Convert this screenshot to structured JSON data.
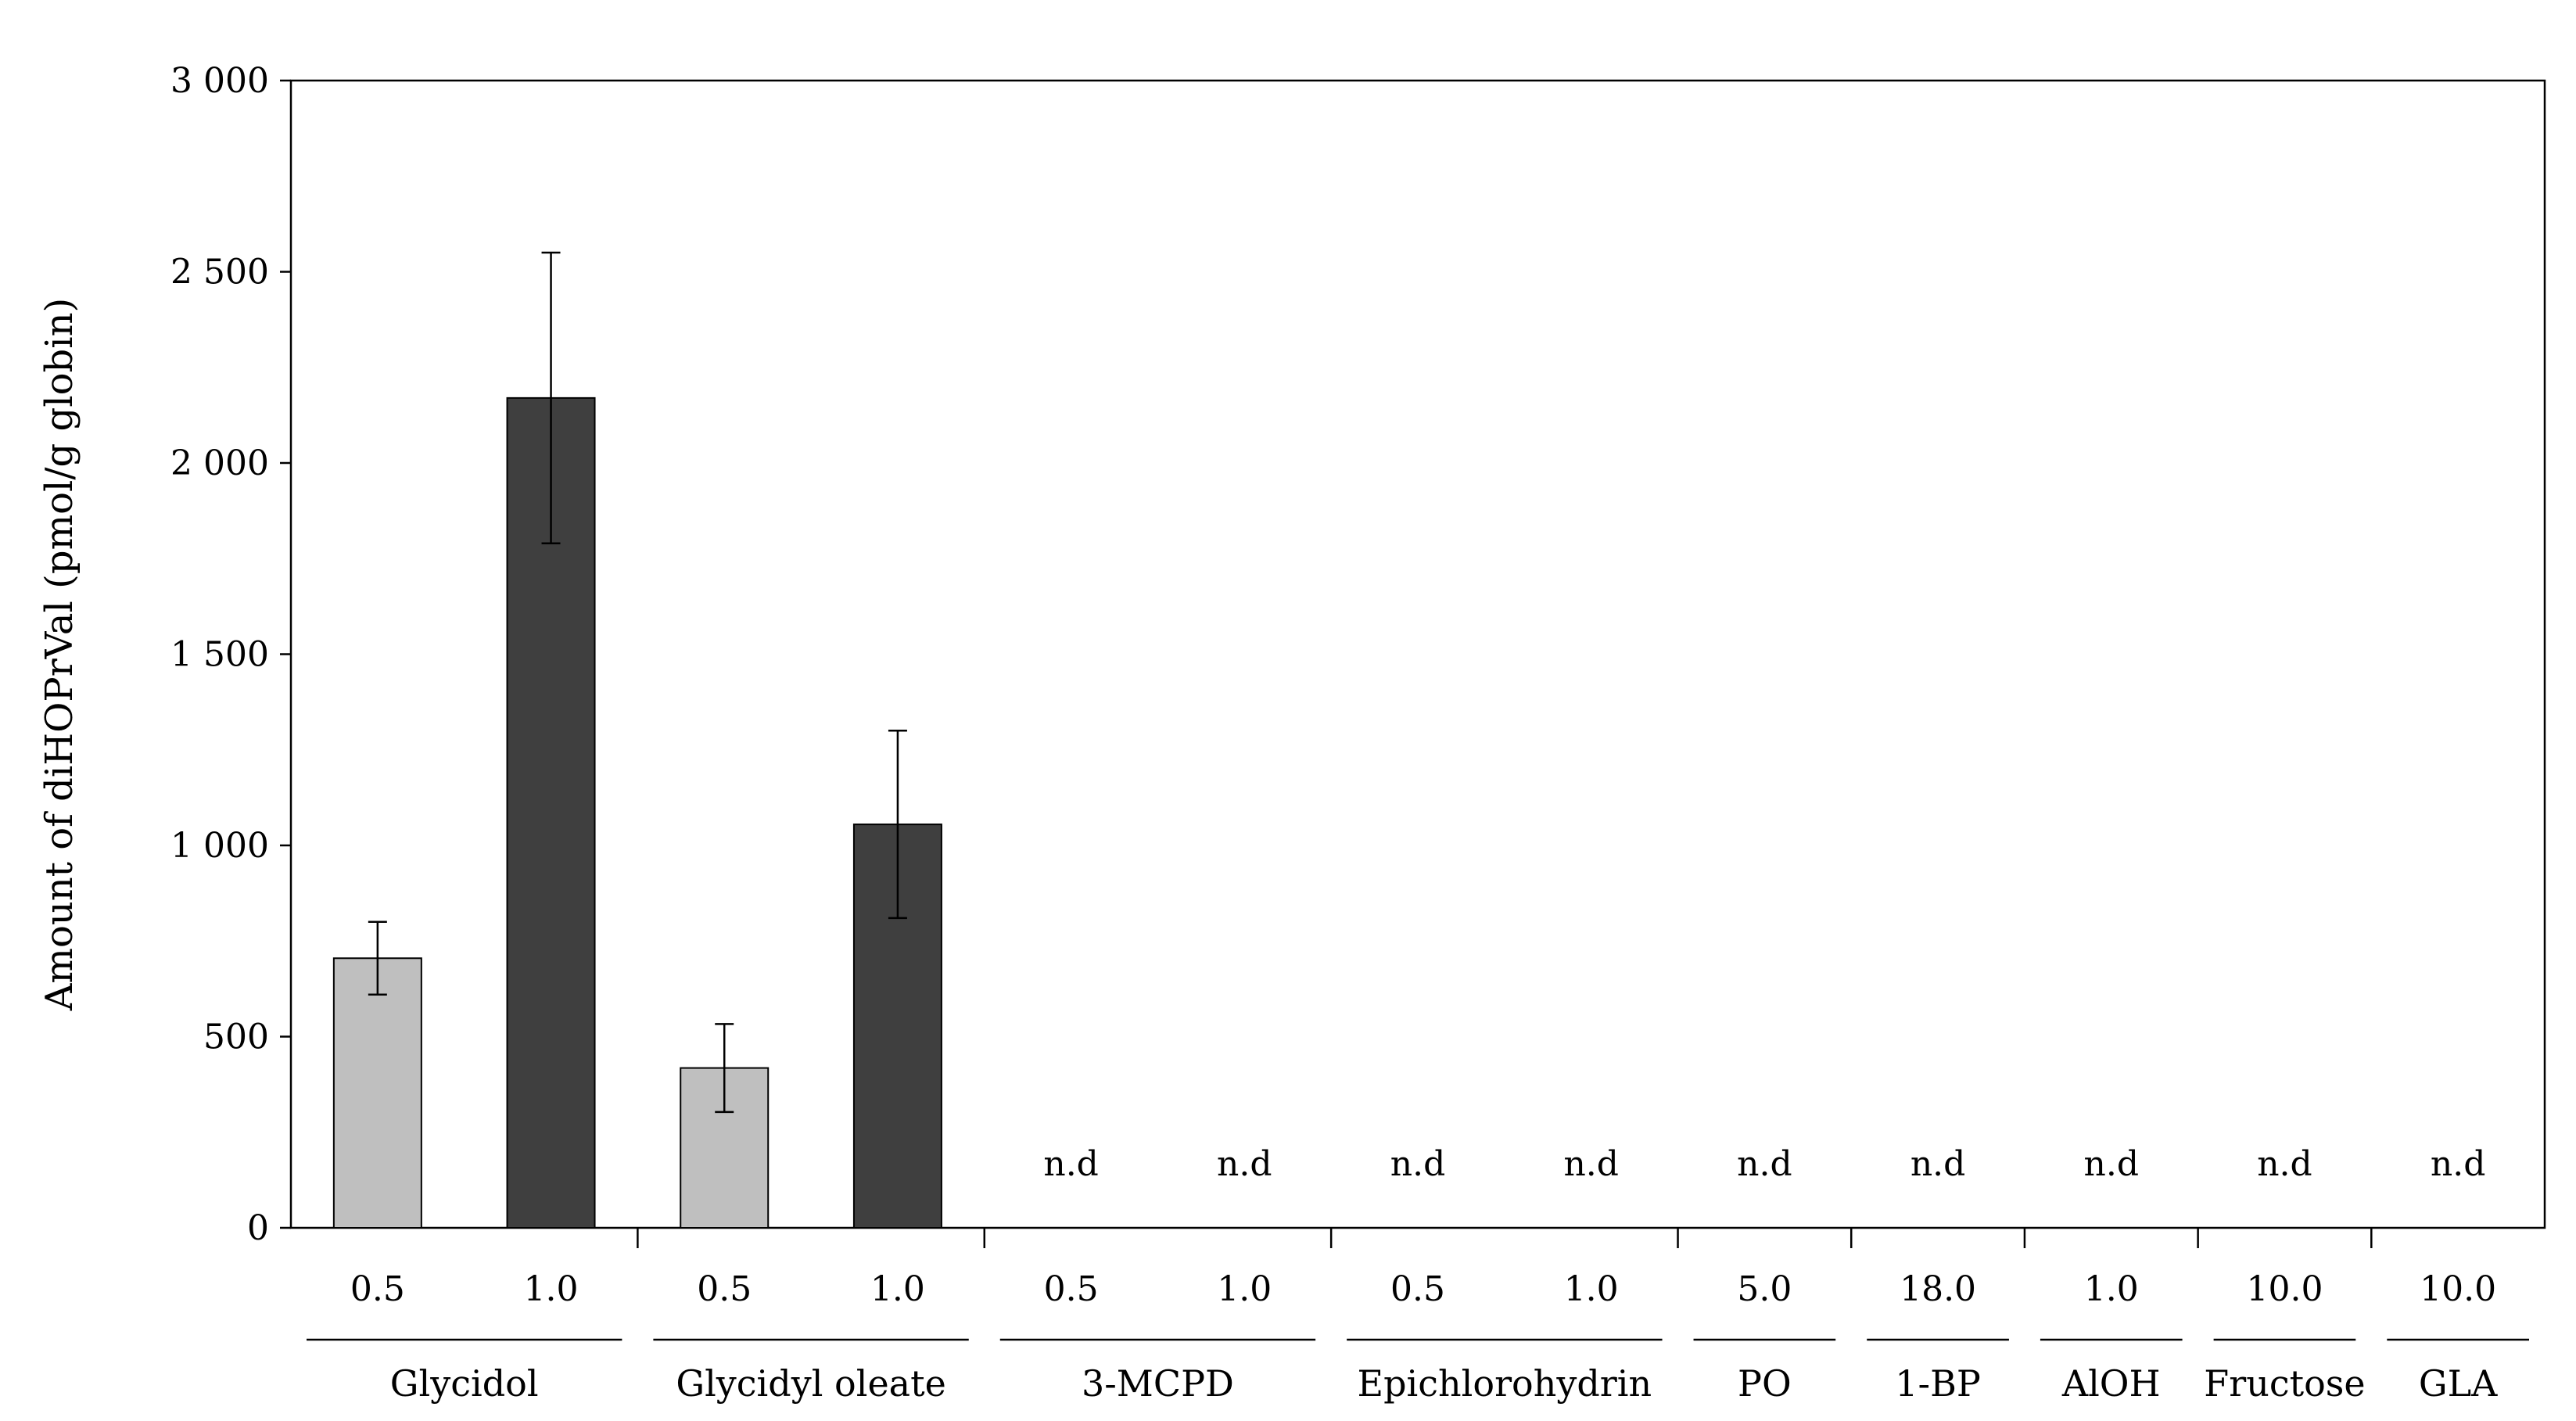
{
  "chart_data": {
    "type": "bar",
    "title": "",
    "xlabel": "",
    "ylabel": "Amount of diHOPrVal (pmol/g globin)",
    "ylim": [
      0,
      3000
    ],
    "yticks": [
      0,
      500,
      1000,
      1500,
      2000,
      2500,
      3000
    ],
    "ytick_labels": [
      "0",
      "500",
      "1 000",
      "1 500",
      "2 000",
      "2 500",
      "3 000"
    ],
    "grid": false,
    "legend": "none",
    "colors": {
      "low_dose": "#bfbfbf",
      "high_dose": "#3f3f3f",
      "axis": "#000000"
    },
    "groups": [
      {
        "name": "Glycidol",
        "doses": [
          {
            "dose": "0.5",
            "value": 705,
            "error": 95,
            "shade": "light"
          },
          {
            "dose": "1.0",
            "value": 2170,
            "error": 380,
            "shade": "dark"
          }
        ]
      },
      {
        "name": "Glycidyl oleate",
        "doses": [
          {
            "dose": "0.5",
            "value": 418,
            "error": 115,
            "shade": "light"
          },
          {
            "dose": "1.0",
            "value": 1055,
            "error": 245,
            "shade": "dark"
          }
        ]
      },
      {
        "name": "3-MCPD",
        "doses": [
          {
            "dose": "0.5",
            "value": null,
            "label": "n.d"
          },
          {
            "dose": "1.0",
            "value": null,
            "label": "n.d"
          }
        ]
      },
      {
        "name": "Epichlorohydrin",
        "doses": [
          {
            "dose": "0.5",
            "value": null,
            "label": "n.d"
          },
          {
            "dose": "1.0",
            "value": null,
            "label": "n.d"
          }
        ]
      },
      {
        "name": "PO",
        "doses": [
          {
            "dose": "5.0",
            "value": null,
            "label": "n.d"
          }
        ]
      },
      {
        "name": "1-BP",
        "doses": [
          {
            "dose": "18.0",
            "value": null,
            "label": "n.d"
          }
        ]
      },
      {
        "name": "AlOH",
        "doses": [
          {
            "dose": "1.0",
            "value": null,
            "label": "n.d"
          }
        ]
      },
      {
        "name": "Fructose",
        "doses": [
          {
            "dose": "10.0",
            "value": null,
            "label": "n.d"
          }
        ]
      },
      {
        "name": "GLA",
        "doses": [
          {
            "dose": "10.0",
            "value": null,
            "label": "n.d"
          }
        ]
      }
    ]
  }
}
